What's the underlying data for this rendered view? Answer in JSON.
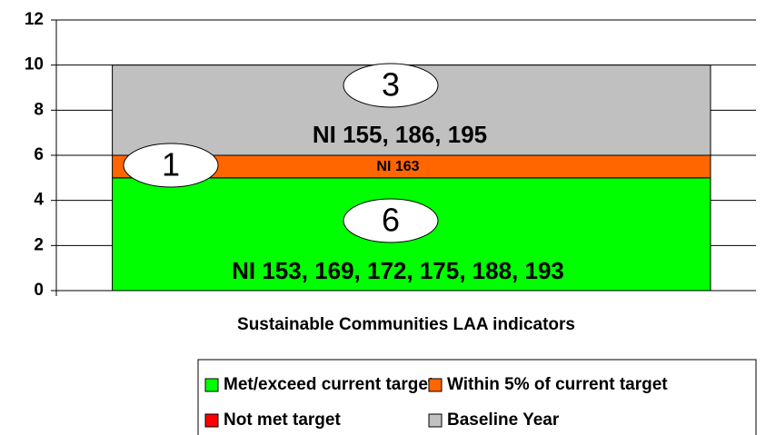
{
  "chart_data": {
    "type": "stacked_bar",
    "x_label": "Sustainable Communities LAA indicators",
    "categories": [
      null
    ],
    "series": [
      {
        "name": "Met/exceed current target",
        "color": "#00ff00",
        "values": [
          5
        ]
      },
      {
        "name": "Within 5% of current target",
        "color": "#ff6600",
        "values": [
          1
        ]
      },
      {
        "name": "Not met target",
        "color": "#ff0000",
        "values": [
          0
        ]
      },
      {
        "name": "Baseline Year",
        "color": "#c0c0c0",
        "values": [
          4
        ]
      }
    ],
    "annotations": [
      {
        "count": "3",
        "text": "NI 155, 186, 195"
      },
      {
        "count": "1",
        "text": "NI 163"
      },
      {
        "count": "6",
        "text": "NI 153, 169, 172, 175, 188, 193"
      }
    ],
    "ylim": [
      0,
      12
    ],
    "yticks": [
      0,
      2,
      4,
      6,
      8,
      10,
      12
    ],
    "grid": true
  }
}
